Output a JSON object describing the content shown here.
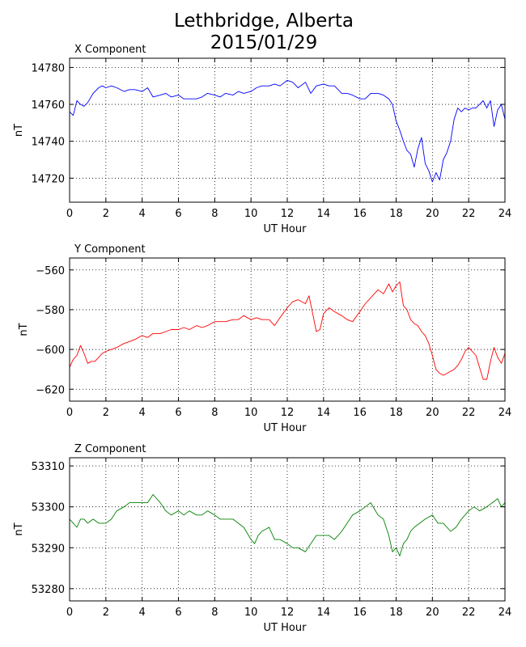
{
  "figure": {
    "title_line1": "Lethbridge, Alberta",
    "title_line2": "2015/01/29"
  },
  "chart_data": [
    {
      "type": "line",
      "title": "X Component",
      "xlabel": "UT Hour",
      "ylabel": "nT",
      "xlim": [
        0,
        24
      ],
      "ylim": [
        14707,
        14785
      ],
      "xticks": [
        0,
        2,
        4,
        6,
        8,
        10,
        12,
        14,
        16,
        18,
        20,
        22,
        24
      ],
      "yticks": [
        14720,
        14740,
        14760,
        14780
      ],
      "grid": true,
      "color": "#0000ff",
      "series": [
        {
          "x": [
            0,
            0.2,
            0.4,
            0.6,
            0.8,
            1.0,
            1.3,
            1.6,
            1.8,
            2.0,
            2.3,
            2.6,
            3.0,
            3.3,
            3.6,
            4.0,
            4.3,
            4.6,
            5.0,
            5.3,
            5.6,
            6.0,
            6.3,
            6.6,
            7.0,
            7.3,
            7.6,
            8.0,
            8.3,
            8.6,
            9.0,
            9.3,
            9.6,
            10.0,
            10.3,
            10.6,
            11.0,
            11.3,
            11.6,
            12.0,
            12.3,
            12.6,
            13.0,
            13.3,
            13.6,
            14.0,
            14.3,
            14.6,
            15.0,
            15.3,
            15.6,
            16.0,
            16.3,
            16.6,
            17.0,
            17.3,
            17.6,
            17.8,
            18.0,
            18.2,
            18.4,
            18.6,
            18.8,
            19.0,
            19.2,
            19.4,
            19.6,
            19.8,
            20.0,
            20.2,
            20.4,
            20.6,
            20.8,
            21.0,
            21.2,
            21.4,
            21.6,
            21.8,
            22.0,
            22.2,
            22.4,
            22.6,
            22.8,
            23.0,
            23.2,
            23.4,
            23.6,
            23.8,
            24.0
          ],
          "y": [
            14756,
            14754,
            14762,
            14760,
            14759,
            14761,
            14766,
            14769,
            14770,
            14769,
            14770,
            14769,
            14767,
            14768,
            14768,
            14767,
            14769,
            14764,
            14765,
            14766,
            14764,
            14765,
            14763,
            14763,
            14763,
            14764,
            14766,
            14765,
            14764,
            14766,
            14765,
            14767,
            14766,
            14767,
            14769,
            14770,
            14770,
            14771,
            14770,
            14773,
            14772,
            14769,
            14772,
            14766,
            14770,
            14771,
            14770,
            14770,
            14766,
            14766,
            14765,
            14763,
            14763,
            14766,
            14766,
            14765,
            14763,
            14760,
            14751,
            14746,
            14740,
            14735,
            14733,
            14726,
            14736,
            14742,
            14728,
            14724,
            14718,
            14723,
            14719,
            14730,
            14734,
            14740,
            14752,
            14758,
            14756,
            14758,
            14757,
            14758,
            14758,
            14760,
            14762,
            14758,
            14762,
            14748,
            14757,
            14760,
            14752
          ]
        }
      ]
    },
    {
      "type": "line",
      "title": "Y Component",
      "xlabel": "UT Hour",
      "ylabel": "nT",
      "xlim": [
        0,
        24
      ],
      "ylim": [
        -626,
        -554
      ],
      "xticks": [
        0,
        2,
        4,
        6,
        8,
        10,
        12,
        14,
        16,
        18,
        20,
        22,
        24
      ],
      "yticks": [
        -620,
        -600,
        -580,
        -560
      ],
      "grid": true,
      "color": "#ff0000",
      "series": [
        {
          "x": [
            0,
            0.2,
            0.4,
            0.6,
            0.8,
            1.0,
            1.2,
            1.4,
            1.6,
            1.8,
            2.0,
            2.3,
            2.6,
            3.0,
            3.3,
            3.6,
            4.0,
            4.3,
            4.6,
            5.0,
            5.3,
            5.6,
            6.0,
            6.3,
            6.6,
            7.0,
            7.3,
            7.6,
            8.0,
            8.3,
            8.6,
            9.0,
            9.3,
            9.6,
            10.0,
            10.3,
            10.6,
            11.0,
            11.3,
            11.6,
            12.0,
            12.3,
            12.6,
            13.0,
            13.2,
            13.4,
            13.6,
            13.8,
            14.0,
            14.3,
            14.6,
            15.0,
            15.3,
            15.6,
            16.0,
            16.3,
            16.6,
            17.0,
            17.3,
            17.6,
            17.8,
            18.0,
            18.2,
            18.4,
            18.6,
            18.8,
            19.0,
            19.2,
            19.4,
            19.6,
            19.8,
            20.0,
            20.2,
            20.4,
            20.6,
            20.8,
            21.0,
            21.2,
            21.4,
            21.6,
            21.8,
            22.0,
            22.2,
            22.4,
            22.6,
            22.8,
            23.0,
            23.2,
            23.4,
            23.6,
            23.8,
            24.0
          ],
          "y": [
            -609,
            -605,
            -603,
            -598,
            -602,
            -607,
            -606,
            -606,
            -604,
            -602,
            -601,
            -600,
            -599,
            -597,
            -596,
            -595,
            -593,
            -594,
            -592,
            -592,
            -591,
            -590,
            -590,
            -589,
            -590,
            -588,
            -589,
            -588,
            -586,
            -586,
            -586,
            -585,
            -585,
            -583,
            -585,
            -584,
            -585,
            -585,
            -588,
            -584,
            -579,
            -576,
            -575,
            -577,
            -573,
            -582,
            -591,
            -590,
            -582,
            -579,
            -581,
            -583,
            -585,
            -586,
            -581,
            -577,
            -574,
            -570,
            -572,
            -567,
            -571,
            -568,
            -566,
            -578,
            -580,
            -585,
            -587,
            -588,
            -591,
            -593,
            -597,
            -603,
            -610,
            -612,
            -613,
            -612,
            -611,
            -610,
            -608,
            -605,
            -601,
            -599,
            -601,
            -603,
            -609,
            -615,
            -615,
            -606,
            -599,
            -604,
            -607,
            -602
          ]
        }
      ]
    },
    {
      "type": "line",
      "title": "Z Component",
      "xlabel": "UT Hour",
      "ylabel": "nT",
      "xlim": [
        0,
        24
      ],
      "ylim": [
        53277,
        53312
      ],
      "xticks": [
        0,
        2,
        4,
        6,
        8,
        10,
        12,
        14,
        16,
        18,
        20,
        22,
        24
      ],
      "yticks": [
        53280,
        53290,
        53300,
        53310
      ],
      "grid": true,
      "color": "#008000",
      "series": [
        {
          "x": [
            0,
            0.2,
            0.4,
            0.6,
            0.8,
            1.0,
            1.3,
            1.6,
            2.0,
            2.3,
            2.6,
            3.0,
            3.3,
            3.6,
            4.0,
            4.3,
            4.6,
            5.0,
            5.3,
            5.6,
            6.0,
            6.3,
            6.6,
            7.0,
            7.3,
            7.6,
            8.0,
            8.3,
            8.6,
            9.0,
            9.3,
            9.6,
            10.0,
            10.2,
            10.4,
            10.6,
            11.0,
            11.3,
            11.6,
            12.0,
            12.3,
            12.6,
            13.0,
            13.3,
            13.6,
            14.0,
            14.3,
            14.6,
            15.0,
            15.3,
            15.6,
            16.0,
            16.3,
            16.6,
            17.0,
            17.3,
            17.6,
            17.8,
            18.0,
            18.2,
            18.4,
            18.6,
            18.8,
            19.0,
            19.3,
            19.6,
            20.0,
            20.3,
            20.6,
            21.0,
            21.3,
            21.6,
            22.0,
            22.3,
            22.6,
            23.0,
            23.3,
            23.6,
            23.8,
            24.0
          ],
          "y": [
            53297,
            53296,
            53295,
            53297,
            53297,
            53296,
            53297,
            53296,
            53296,
            53297,
            53299,
            53300,
            53301,
            53301,
            53301,
            53301,
            53303,
            53301,
            53299,
            53298,
            53299,
            53298,
            53299,
            53298,
            53298,
            53299,
            53298,
            53297,
            53297,
            53297,
            53296,
            53295,
            53292,
            53291,
            53293,
            53294,
            53295,
            53292,
            53292,
            53291,
            53290,
            53290,
            53289,
            53291,
            53293,
            53293,
            53293,
            53292,
            53294,
            53296,
            53298,
            53299,
            53300,
            53301,
            53298,
            53297,
            53293,
            53289,
            53290,
            53288,
            53291,
            53292,
            53294,
            53295,
            53296,
            53297,
            53298,
            53296,
            53296,
            53294,
            53295,
            53297,
            53299,
            53300,
            53299,
            53300,
            53301,
            53302,
            53300,
            53301
          ]
        }
      ]
    }
  ]
}
